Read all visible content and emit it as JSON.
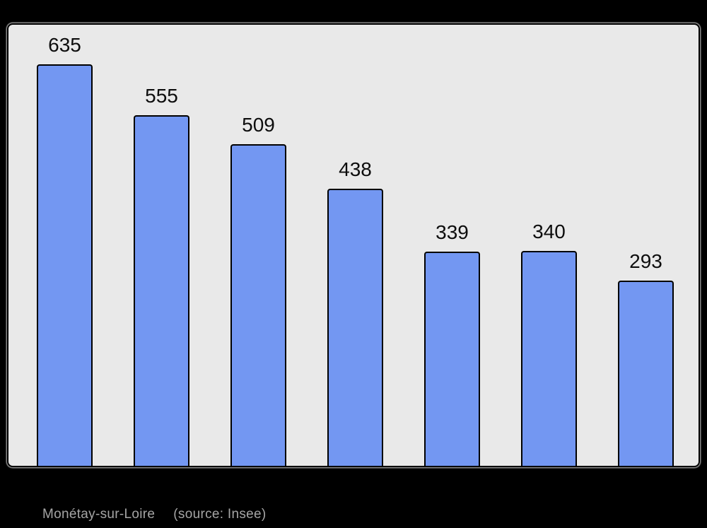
{
  "window": {
    "background": "#000000"
  },
  "plot": {
    "background": "#e9e9e9",
    "border_color": "#000000",
    "halo_color": "#ffffff"
  },
  "bars": {
    "fill": "#7397f2",
    "border": "#000000"
  },
  "caption": {
    "commune": "Monétay-sur-Loire",
    "source": "(source: Insee)",
    "color": "#a5a5a5"
  },
  "chart_data": {
    "type": "bar",
    "values": [
      635,
      555,
      509,
      438,
      339,
      340,
      293
    ],
    "data_labels": [
      "635",
      "555",
      "509",
      "438",
      "339",
      "340",
      "293"
    ],
    "title": "",
    "xlabel": "",
    "ylabel": "",
    "ylim": [
      0,
      698
    ],
    "grid": false,
    "legend": false,
    "axis_tick_labels_visible": false,
    "data_labels_position": "above-bar"
  }
}
